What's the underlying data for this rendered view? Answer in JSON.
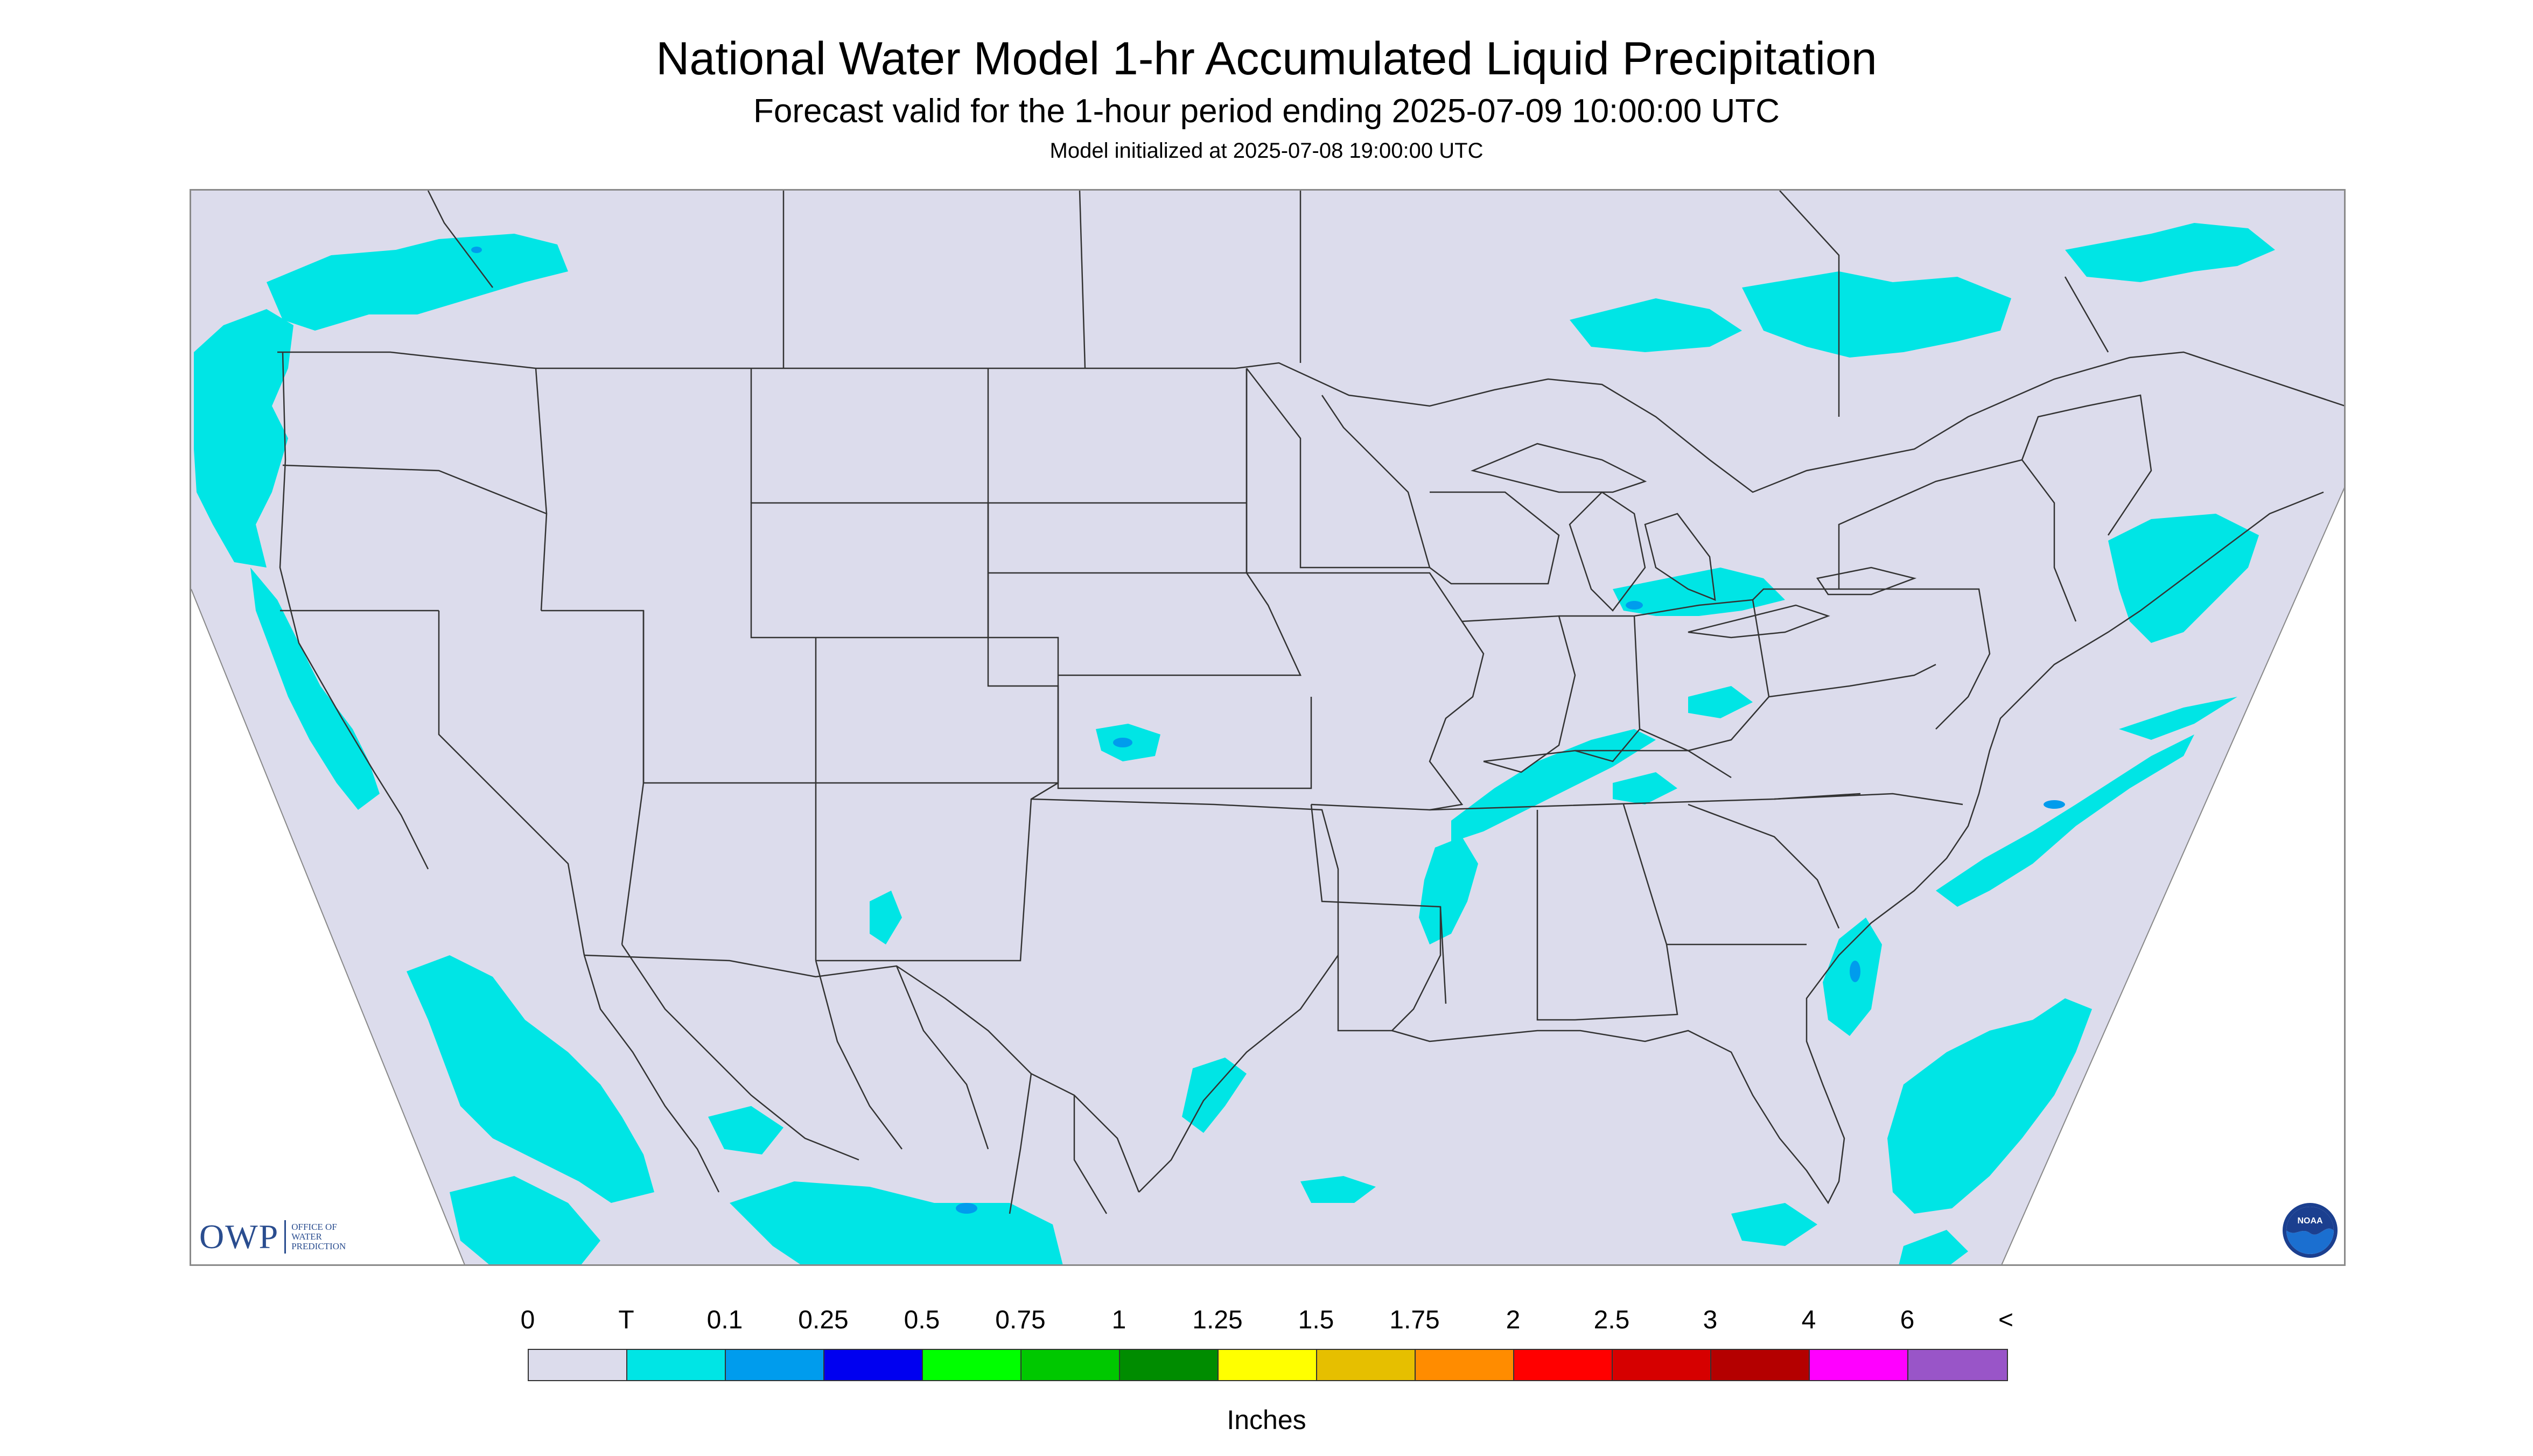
{
  "header": {
    "title": "National Water Model 1-hr Accumulated Liquid Precipitation",
    "subtitle": "Forecast valid for the 1-hour period ending 2025-07-09 10:00:00 UTC",
    "init": "Model initialized at 2025-07-08 19:00:00 UTC"
  },
  "branding": {
    "owp_mark": "OWP",
    "owp_text": [
      "OFFICE OF",
      "WATER",
      "PREDICTION"
    ],
    "noaa_text": "NOAA"
  },
  "legend": {
    "labels": [
      "0",
      "T",
      "0.1",
      "0.25",
      "0.5",
      "0.75",
      "1",
      "1.25",
      "1.5",
      "1.75",
      "2",
      "2.5",
      "3",
      "4",
      "6",
      "<"
    ],
    "colors": [
      "#dcdcec",
      "#00e5e5",
      "#009ced",
      "#0000f0",
      "#00ff00",
      "#00c800",
      "#008c00",
      "#ffff00",
      "#e6bf00",
      "#ff8c00",
      "#ff0000",
      "#d60000",
      "#b40000",
      "#ff00ff",
      "#9955c8"
    ],
    "units": "Inches"
  },
  "map": {
    "background_color": "#dcdcec",
    "outside_color": "#ffffff",
    "precip_color": "#00e5e5",
    "heavy_color": "#009ced",
    "border_color": "#333333"
  }
}
